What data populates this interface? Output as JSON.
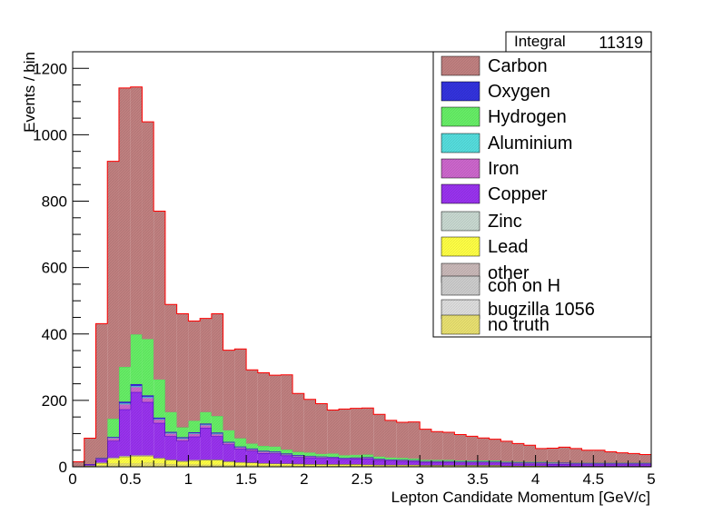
{
  "chart_data": {
    "type": "bar",
    "style": "stacked-step-histogram",
    "xlabel": "Lepton Candidate Momentum [GeV/c]",
    "ylabel": "Events / bin",
    "xlim": [
      0,
      5
    ],
    "ylim": [
      0,
      1250
    ],
    "x_ticks": [
      "0",
      "0.5",
      "1",
      "1.5",
      "2",
      "2.5",
      "3",
      "3.5",
      "4",
      "4.5",
      "5"
    ],
    "y_ticks": [
      "0",
      "200",
      "400",
      "600",
      "800",
      "1000",
      "1200"
    ],
    "stats": {
      "label": "Integral",
      "value": "11319"
    },
    "bin_edges_start": 0,
    "bin_width": 0.1,
    "series": [
      {
        "name": "no truth",
        "color": "#e8e070",
        "values": [
          0,
          2,
          5,
          10,
          10,
          10,
          12,
          10,
          8,
          6,
          7,
          6,
          6,
          5,
          5,
          5,
          4,
          4,
          4,
          3,
          3,
          3,
          3,
          3,
          3,
          3,
          2,
          2,
          2,
          2,
          2,
          2,
          2,
          2,
          2,
          2,
          2,
          1,
          1,
          1,
          1,
          1,
          1,
          1,
          1,
          1,
          1,
          1,
          1,
          1
        ]
      },
      {
        "name": "Lead",
        "color": "#ffff44",
        "values": [
          0,
          1,
          6,
          15,
          20,
          22,
          20,
          15,
          12,
          10,
          12,
          14,
          14,
          10,
          8,
          7,
          6,
          5,
          5,
          5,
          4,
          4,
          4,
          4,
          4,
          3,
          3,
          3,
          3,
          3,
          2,
          2,
          2,
          2,
          2,
          2,
          2,
          2,
          2,
          2,
          2,
          1,
          1,
          1,
          1,
          1,
          1,
          1,
          1,
          1
        ]
      },
      {
        "name": "bugzilla 1056",
        "color": "#dddddd",
        "values": [
          0,
          0,
          0,
          0,
          0,
          0,
          0,
          0,
          0,
          0,
          0,
          0,
          0,
          0,
          0,
          0,
          0,
          0,
          0,
          0,
          0,
          0,
          0,
          0,
          0,
          0,
          0,
          0,
          0,
          0,
          0,
          0,
          0,
          0,
          0,
          0,
          0,
          0,
          0,
          0,
          0,
          0,
          0,
          0,
          0,
          0,
          0,
          0,
          0,
          0
        ]
      },
      {
        "name": "coh on H",
        "color": "#cccccc",
        "values": [
          0,
          0,
          0,
          0,
          0,
          0,
          0,
          0,
          0,
          0,
          0,
          0,
          0,
          0,
          0,
          0,
          0,
          0,
          0,
          0,
          0,
          0,
          0,
          0,
          0,
          0,
          0,
          0,
          0,
          0,
          0,
          0,
          0,
          0,
          0,
          0,
          0,
          0,
          0,
          0,
          0,
          0,
          0,
          0,
          0,
          0,
          0,
          0,
          0,
          0
        ]
      },
      {
        "name": "other",
        "color": "#c9b8b8",
        "values": [
          0,
          1,
          2,
          3,
          3,
          3,
          3,
          2,
          2,
          2,
          2,
          2,
          2,
          2,
          1,
          1,
          1,
          1,
          1,
          1,
          1,
          1,
          1,
          1,
          1,
          1,
          1,
          1,
          1,
          1,
          1,
          1,
          1,
          1,
          1,
          1,
          1,
          0,
          0,
          0,
          0,
          0,
          0,
          0,
          0,
          0,
          0,
          0,
          0,
          0
        ]
      },
      {
        "name": "Zinc",
        "color": "#c8d8d0",
        "values": [
          0,
          0,
          0,
          0,
          0,
          0,
          0,
          0,
          0,
          0,
          0,
          0,
          0,
          0,
          0,
          0,
          0,
          0,
          0,
          0,
          0,
          0,
          0,
          0,
          0,
          0,
          0,
          0,
          0,
          0,
          0,
          0,
          0,
          0,
          0,
          0,
          0,
          0,
          0,
          0,
          0,
          0,
          0,
          0,
          0,
          0,
          0,
          0,
          0,
          0
        ]
      },
      {
        "name": "Copper",
        "color": "#9933ee",
        "values": [
          0,
          4,
          10,
          50,
          140,
          190,
          160,
          105,
          70,
          60,
          70,
          95,
          70,
          50,
          40,
          35,
          30,
          30,
          24,
          20,
          20,
          18,
          18,
          15,
          16,
          18,
          14,
          12,
          11,
          10,
          8,
          8,
          8,
          7,
          7,
          7,
          7,
          7,
          6,
          6,
          6,
          6,
          6,
          5,
          5,
          5,
          5,
          5,
          5,
          5
        ]
      },
      {
        "name": "Iron",
        "color": "#cc66cc",
        "values": [
          0,
          0,
          2,
          8,
          15,
          15,
          12,
          10,
          8,
          6,
          8,
          8,
          6,
          5,
          4,
          4,
          4,
          3,
          3,
          3,
          3,
          3,
          2,
          2,
          2,
          2,
          2,
          2,
          2,
          2,
          2,
          2,
          2,
          2,
          2,
          2,
          2,
          2,
          2,
          2,
          2,
          2,
          2,
          2,
          2,
          2,
          2,
          2,
          2,
          2
        ]
      },
      {
        "name": "Aluminium",
        "color": "#55dddd",
        "values": [
          0,
          0,
          1,
          2,
          3,
          3,
          3,
          2,
          2,
          2,
          2,
          2,
          2,
          1,
          1,
          1,
          1,
          1,
          1,
          1,
          1,
          1,
          1,
          1,
          1,
          1,
          1,
          1,
          1,
          1,
          1,
          1,
          1,
          1,
          1,
          1,
          1,
          1,
          1,
          1,
          1,
          1,
          1,
          1,
          1,
          1,
          1,
          1,
          1,
          1
        ]
      },
      {
        "name": "Oxygen",
        "color": "#3333dd",
        "values": [
          0,
          0,
          1,
          2,
          5,
          6,
          5,
          4,
          3,
          3,
          3,
          3,
          3,
          2,
          2,
          2,
          2,
          2,
          2,
          2,
          1,
          1,
          1,
          1,
          1,
          1,
          1,
          1,
          1,
          1,
          1,
          1,
          1,
          1,
          1,
          1,
          1,
          1,
          1,
          1,
          1,
          1,
          1,
          1,
          1,
          1,
          1,
          1,
          1,
          1
        ]
      },
      {
        "name": "Hydrogen",
        "color": "#66ee66",
        "values": [
          0,
          0,
          0,
          55,
          105,
          150,
          170,
          115,
          60,
          30,
          35,
          35,
          50,
          35,
          25,
          15,
          15,
          15,
          12,
          10,
          10,
          8,
          10,
          8,
          8,
          8,
          7,
          6,
          6,
          5,
          4,
          4,
          4,
          3,
          3,
          3,
          3,
          2,
          2,
          2,
          2,
          2,
          1,
          1,
          1,
          1,
          1,
          1,
          1,
          1
        ]
      },
      {
        "name": "Carbon",
        "color": "#c08080",
        "values": [
          15,
          78,
          404,
          775,
          840,
          745,
          654,
          507,
          324,
          342,
          300,
          282,
          308,
          241,
          269,
          222,
          220,
          215,
          225,
          176,
          160,
          151,
          131,
          139,
          140,
          140,
          127,
          112,
          107,
          110,
          92,
          85,
          83,
          78,
          73,
          68,
          64,
          61,
          55,
          50,
          40,
          42,
          46,
          43,
          38,
          38,
          33,
          30,
          28,
          25
        ]
      }
    ]
  }
}
